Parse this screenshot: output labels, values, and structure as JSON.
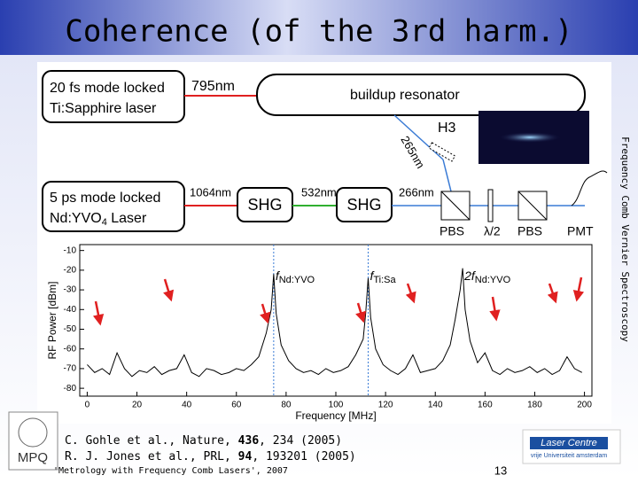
{
  "header": {
    "title": "Coherence (of the 3rd harm.)"
  },
  "side_text": "Frequency Comb Vernier Spectroscopy",
  "diagram": {
    "laser1": [
      "20 fs mode locked",
      "Ti:Sapphire laser"
    ],
    "beam1": "795nm",
    "resonator": "buildup resonator",
    "beam_uv": "265nm",
    "crystal": "H3",
    "laser2": [
      "5 ps mode locked",
      "Nd:YVO",
      "4",
      " Laser"
    ],
    "beam2": "1064nm",
    "shg1": "SHG",
    "beam3": "532nm",
    "shg2": "SHG",
    "beam4": "266nm",
    "pbs1": "PBS",
    "waveplate": "λ/2",
    "pbs2": "PBS",
    "detector": "PMT"
  },
  "chart_data": {
    "type": "line",
    "xlabel": "Frequency [MHz]",
    "ylabel": "RF Power [dBm]",
    "x": [
      0,
      3,
      6,
      9,
      12,
      15,
      18,
      21,
      24,
      27,
      30,
      33,
      36,
      39,
      42,
      45,
      48,
      51,
      54,
      57,
      60,
      63,
      66,
      69,
      72,
      74,
      75,
      76,
      78,
      81,
      84,
      87,
      90,
      93,
      96,
      99,
      102,
      105,
      108,
      111,
      112,
      113,
      114,
      116,
      119,
      122,
      125,
      128,
      131,
      134,
      137,
      140,
      143,
      146,
      148,
      150,
      151,
      152,
      154,
      157,
      160,
      163,
      166,
      169,
      172,
      175,
      178,
      181,
      184,
      187,
      190,
      193,
      196,
      199
    ],
    "values": [
      -68,
      -72,
      -70,
      -73,
      -62,
      -70,
      -74,
      -71,
      -72,
      -69,
      -73,
      -71,
      -70,
      -63,
      -72,
      -74,
      -70,
      -71,
      -73,
      -72,
      -70,
      -71,
      -68,
      -64,
      -52,
      -40,
      -22,
      -42,
      -58,
      -66,
      -70,
      -72,
      -71,
      -73,
      -70,
      -72,
      -71,
      -69,
      -63,
      -55,
      -42,
      -24,
      -44,
      -60,
      -68,
      -71,
      -73,
      -70,
      -63,
      -72,
      -71,
      -70,
      -66,
      -58,
      -45,
      -30,
      -19,
      -40,
      -56,
      -67,
      -62,
      -71,
      -73,
      -70,
      -72,
      -71,
      -69,
      -72,
      -70,
      -73,
      -71,
      -64,
      -70,
      -72
    ],
    "color": "#000000",
    "xlim": [
      -3,
      203
    ],
    "ylim": [
      -84,
      -7
    ],
    "xticks": [
      0,
      20,
      40,
      60,
      80,
      100,
      120,
      140,
      160,
      180,
      200
    ],
    "yticks": [
      -80,
      -70,
      -60,
      -50,
      -40,
      -30,
      -20,
      -10
    ],
    "annotations": [
      {
        "text": "f",
        "sub": "Nd:YVO",
        "x": 75,
        "line": true
      },
      {
        "text": "f",
        "sub": "Ti:Sa",
        "x": 113,
        "line": true
      },
      {
        "text": "2f",
        "sub": "Nd:YVO",
        "x": 151,
        "line": false
      }
    ]
  },
  "footer": {
    "ref1": [
      "C. Gohle et al., Nature, ",
      "436",
      ", 234 (2005)"
    ],
    "ref2": [
      "R. J. Jones et al., PRL, ",
      "94",
      ", 193201 (2005)"
    ],
    "course": "'Metrology with Frequency Comb Lasers', 2007",
    "page": "13",
    "logo_left": "MPQ",
    "logo_right": "Laser Centre",
    "logo_right_sub": "vrije Universiteit amsterdam"
  }
}
